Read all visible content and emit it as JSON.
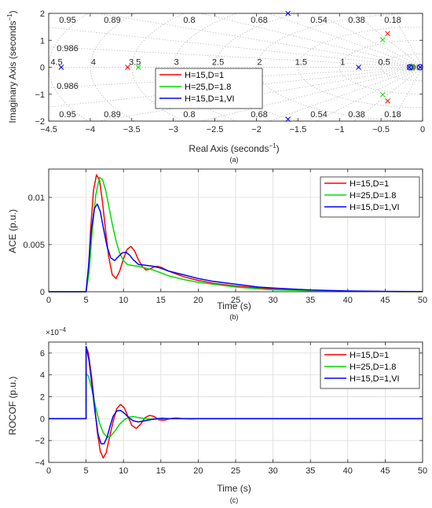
{
  "colors": {
    "red": "#ff0000",
    "green": "#00dd00",
    "blue": "#0000ff",
    "axis": "#262626",
    "grid": "#dcdcdc"
  },
  "chart_data": [
    {
      "type": "scatter",
      "panel": "a",
      "xlabel_main": "Real Axis (seconds",
      "xlabel_sup": "−1",
      "xlabel_close": ")",
      "ylabel_main": "Imaginary Axis (seconds",
      "ylabel_sup": "−1",
      "ylabel_close": ")",
      "caption": "(a)",
      "xlim": [
        -4.5,
        0
      ],
      "ylim": [
        -2,
        2
      ],
      "xticks": [
        -4.5,
        -4,
        -3.5,
        -3,
        -2.5,
        -2,
        -1.5,
        -1,
        -0.5,
        0
      ],
      "xtick_labels": [
        "−4.5",
        "−4",
        "−3.5",
        "−3",
        "−2.5",
        "−2",
        "−1.5",
        "−1",
        "−0.5",
        "0"
      ],
      "yticks": [
        -2,
        -1,
        0,
        1,
        2
      ],
      "ytick_labels": [
        "−2",
        "−1",
        "0",
        "1",
        "2"
      ],
      "grid": "s-plane damping/frequency grid",
      "damping_labels": [
        "0.95",
        "0.89",
        "0.8",
        "0.68",
        "0.54",
        "0.38",
        "0.18",
        "0.986"
      ],
      "wn_labels": [
        "4.5",
        "4",
        "3.5",
        "3",
        "2.5",
        "2",
        "1.5",
        "1",
        "0.5"
      ],
      "legend_position": "center",
      "series": [
        {
          "name": "H=15,D=1",
          "color": "#ff0000",
          "poles": [
            [
              -3.55,
              0
            ],
            [
              -0.42,
              1.25
            ],
            [
              -0.42,
              -1.25
            ],
            [
              -0.12,
              0
            ]
          ],
          "zeros": [
            [
              -0.12,
              0
            ]
          ]
        },
        {
          "name": "H=25,D=1.8",
          "color": "#00dd00",
          "poles": [
            [
              -3.42,
              0
            ],
            [
              -0.48,
              1.02
            ],
            [
              -0.48,
              -1.02
            ],
            [
              -0.13,
              0
            ]
          ],
          "zeros": [
            [
              -0.13,
              0
            ]
          ]
        },
        {
          "name": "H=15,D=1,VI",
          "color": "#0000ff",
          "poles": [
            [
              -4.35,
              0
            ],
            [
              -1.62,
              2.0
            ],
            [
              -1.62,
              -1.93
            ],
            [
              -0.77,
              0
            ],
            [
              -0.16,
              0
            ],
            [
              -0.03,
              0
            ]
          ],
          "zeros": [
            [
              -0.15,
              0
            ],
            [
              -0.03,
              0
            ]
          ]
        }
      ]
    },
    {
      "type": "line",
      "panel": "b",
      "xlabel": "Time (s)",
      "ylabel": "ACE (p.u.)",
      "caption": "(b)",
      "xlim": [
        0,
        50
      ],
      "ylim": [
        0,
        0.013
      ],
      "xticks": [
        0,
        5,
        10,
        15,
        20,
        25,
        30,
        35,
        40,
        45,
        50
      ],
      "xtick_labels": [
        "0",
        "5",
        "10",
        "15",
        "20",
        "25",
        "30",
        "35",
        "40",
        "45",
        "50"
      ],
      "yticks": [
        0,
        0.005,
        0.01
      ],
      "ytick_labels": [
        "0",
        "0.005",
        "0.01"
      ],
      "grid": true,
      "legend_position": "top-right",
      "series": [
        {
          "name": "H=15,D=1",
          "color": "#ff0000",
          "points": [
            [
              0,
              0
            ],
            [
              5,
              0
            ],
            [
              5.3,
              0.002
            ],
            [
              5.6,
              0.0065
            ],
            [
              6,
              0.0108
            ],
            [
              6.4,
              0.0124
            ],
            [
              6.8,
              0.0118
            ],
            [
              7.2,
              0.0095
            ],
            [
              7.6,
              0.0065
            ],
            [
              8,
              0.0038
            ],
            [
              8.5,
              0.0018
            ],
            [
              9,
              0.0014
            ],
            [
              9.5,
              0.0022
            ],
            [
              10,
              0.0035
            ],
            [
              10.5,
              0.0045
            ],
            [
              11,
              0.0048
            ],
            [
              11.5,
              0.0043
            ],
            [
              12,
              0.0034
            ],
            [
              12.5,
              0.0027
            ],
            [
              13,
              0.0023
            ],
            [
              13.5,
              0.0024
            ],
            [
              14,
              0.0026
            ],
            [
              14.5,
              0.0027
            ],
            [
              15,
              0.0026
            ],
            [
              16,
              0.0022
            ],
            [
              17,
              0.0019
            ],
            [
              18,
              0.0016
            ],
            [
              20,
              0.0012
            ],
            [
              22,
              0.0009
            ],
            [
              25,
              0.0006
            ],
            [
              28,
              0.0004
            ],
            [
              30,
              0.0003
            ],
            [
              35,
              0.00012
            ],
            [
              40,
              5e-05
            ],
            [
              45,
              2e-05
            ],
            [
              50,
              1e-05
            ]
          ]
        },
        {
          "name": "H=25,D=1.8",
          "color": "#00dd00",
          "points": [
            [
              0,
              0
            ],
            [
              5,
              0
            ],
            [
              5.4,
              0.002
            ],
            [
              5.8,
              0.0062
            ],
            [
              6.3,
              0.0103
            ],
            [
              6.8,
              0.0121
            ],
            [
              7.2,
              0.0119
            ],
            [
              7.6,
              0.0108
            ],
            [
              8,
              0.0092
            ],
            [
              8.5,
              0.0072
            ],
            [
              9,
              0.0054
            ],
            [
              9.5,
              0.0041
            ],
            [
              10,
              0.0033
            ],
            [
              10.5,
              0.0029
            ],
            [
              11,
              0.0028
            ],
            [
              12,
              0.0027
            ],
            [
              13,
              0.0025
            ],
            [
              14,
              0.0023
            ],
            [
              15,
              0.002
            ],
            [
              16,
              0.0017
            ],
            [
              18,
              0.0013
            ],
            [
              20,
              0.001
            ],
            [
              22,
              0.0008
            ],
            [
              25,
              0.0005
            ],
            [
              28,
              0.0003
            ],
            [
              30,
              0.0002
            ],
            [
              35,
              0.0001
            ],
            [
              40,
              4e-05
            ],
            [
              45,
              2e-05
            ],
            [
              50,
              1e-05
            ]
          ]
        },
        {
          "name": "H=15,D=1,VI",
          "color": "#0000ff",
          "points": [
            [
              0,
              0
            ],
            [
              5,
              0
            ],
            [
              5.3,
              0.0025
            ],
            [
              5.7,
              0.0065
            ],
            [
              6.1,
              0.0088
            ],
            [
              6.5,
              0.0093
            ],
            [
              6.9,
              0.0085
            ],
            [
              7.3,
              0.0068
            ],
            [
              7.8,
              0.0048
            ],
            [
              8.3,
              0.0036
            ],
            [
              8.8,
              0.0033
            ],
            [
              9.3,
              0.0037
            ],
            [
              9.8,
              0.0041
            ],
            [
              10.3,
              0.0042
            ],
            [
              10.8,
              0.0039
            ],
            [
              11.3,
              0.0034
            ],
            [
              12,
              0.0029
            ],
            [
              13,
              0.0028
            ],
            [
              14,
              0.0027
            ],
            [
              15,
              0.0025
            ],
            [
              16,
              0.0022
            ],
            [
              17,
              0.002
            ],
            [
              18,
              0.0018
            ],
            [
              20,
              0.0014
            ],
            [
              22,
              0.0011
            ],
            [
              25,
              0.0008
            ],
            [
              28,
              0.0005
            ],
            [
              30,
              0.0004
            ],
            [
              35,
              0.00018
            ],
            [
              40,
              8e-05
            ],
            [
              45,
              4e-05
            ],
            [
              50,
              2e-05
            ]
          ]
        }
      ]
    },
    {
      "type": "line",
      "panel": "c",
      "xlabel": "Time (s)",
      "ylabel": "ROCOF (p.u.)",
      "caption": "(c)",
      "exponent_label": "×10",
      "exponent_power": "−4",
      "xlim": [
        0,
        50
      ],
      "ylim": [
        -4,
        7
      ],
      "xticks": [
        0,
        5,
        10,
        15,
        20,
        25,
        30,
        35,
        40,
        45,
        50
      ],
      "xtick_labels": [
        "0",
        "5",
        "10",
        "15",
        "20",
        "25",
        "30",
        "35",
        "40",
        "45",
        "50"
      ],
      "yticks": [
        -4,
        -2,
        0,
        2,
        4,
        6
      ],
      "ytick_labels": [
        "−4",
        "−2",
        "0",
        "2",
        "4",
        "6"
      ],
      "grid": true,
      "legend_position": "top-right",
      "series": [
        {
          "name": "H=15,D=1",
          "color": "#ff0000",
          "points": [
            [
              0,
              0
            ],
            [
              5,
              0
            ],
            [
              5,
              6.6
            ],
            [
              5.3,
              6.0
            ],
            [
              5.7,
              4.0
            ],
            [
              6.1,
              1.5
            ],
            [
              6.5,
              -1.2
            ],
            [
              6.9,
              -3.0
            ],
            [
              7.3,
              -3.6
            ],
            [
              7.7,
              -3.1
            ],
            [
              8.1,
              -1.8
            ],
            [
              8.6,
              -0.3
            ],
            [
              9.1,
              0.9
            ],
            [
              9.6,
              1.3
            ],
            [
              10.1,
              1.0
            ],
            [
              10.6,
              0.2
            ],
            [
              11.1,
              -0.6
            ],
            [
              11.7,
              -0.9
            ],
            [
              12.3,
              -0.5
            ],
            [
              12.9,
              0.1
            ],
            [
              13.5,
              0.3
            ],
            [
              14.1,
              0.2
            ],
            [
              14.7,
              -0.1
            ],
            [
              15.4,
              -0.15
            ],
            [
              16.2,
              0
            ],
            [
              17,
              0.06
            ],
            [
              18,
              0
            ],
            [
              19,
              -0.03
            ],
            [
              20,
              0
            ],
            [
              50,
              0
            ]
          ]
        },
        {
          "name": "H=25,D=1.8",
          "color": "#00dd00",
          "points": [
            [
              0,
              0
            ],
            [
              5,
              0
            ],
            [
              5,
              4.1
            ],
            [
              5.3,
              3.9
            ],
            [
              5.8,
              2.6
            ],
            [
              6.3,
              1.0
            ],
            [
              6.8,
              -0.4
            ],
            [
              7.3,
              -1.3
            ],
            [
              7.8,
              -1.7
            ],
            [
              8.3,
              -1.6
            ],
            [
              8.9,
              -1.1
            ],
            [
              9.5,
              -0.5
            ],
            [
              10.1,
              -0.1
            ],
            [
              10.7,
              0.15
            ],
            [
              11.3,
              0.2
            ],
            [
              12,
              0.1
            ],
            [
              13,
              0
            ],
            [
              14,
              -0.05
            ],
            [
              15,
              -0.03
            ],
            [
              16,
              0
            ],
            [
              50,
              0
            ]
          ]
        },
        {
          "name": "H=15,D=1,VI",
          "color": "#0000ff",
          "points": [
            [
              0,
              0
            ],
            [
              5,
              0
            ],
            [
              5,
              6.6
            ],
            [
              5.4,
              5.3
            ],
            [
              5.8,
              3.0
            ],
            [
              6.2,
              0.6
            ],
            [
              6.6,
              -1.4
            ],
            [
              7,
              -2.3
            ],
            [
              7.4,
              -2.3
            ],
            [
              7.8,
              -1.7
            ],
            [
              8.2,
              -0.7
            ],
            [
              8.6,
              0.2
            ],
            [
              9.1,
              0.7
            ],
            [
              9.6,
              0.75
            ],
            [
              10.1,
              0.5
            ],
            [
              10.7,
              0.1
            ],
            [
              11.3,
              -0.2
            ],
            [
              12,
              -0.3
            ],
            [
              12.8,
              -0.2
            ],
            [
              13.6,
              -0.1
            ],
            [
              14.4,
              0
            ],
            [
              15.2,
              0.03
            ],
            [
              16,
              0
            ],
            [
              50,
              0
            ]
          ]
        }
      ]
    }
  ]
}
